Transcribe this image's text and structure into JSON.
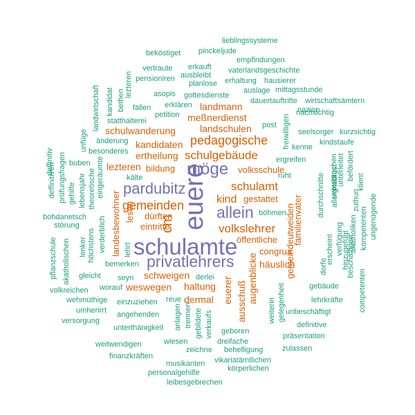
{
  "colors": {
    "purple": "#7570b3",
    "orange": "#d95f02",
    "teal": "#1b9e77"
  },
  "words": [
    {
      "text": "schulamte",
      "color": "purple"
    },
    {
      "text": "euere",
      "color": "purple"
    },
    {
      "text": "privatlehrers",
      "color": "purple"
    },
    {
      "text": "möge",
      "color": "purple"
    },
    {
      "text": "pardubitz",
      "color": "purple"
    },
    {
      "text": "allein",
      "color": "purple"
    },
    {
      "text": "pedagogische",
      "color": "orange"
    },
    {
      "text": "schulgebäude",
      "color": "orange"
    },
    {
      "text": "gemeinden",
      "color": "orange"
    },
    {
      "text": "volkslehrer",
      "color": "orange"
    },
    {
      "text": "schulamt",
      "color": "orange"
    },
    {
      "text": "kind",
      "color": "orange"
    },
    {
      "text": "cm",
      "color": "orange"
    },
    {
      "text": "landmann",
      "color": "orange"
    },
    {
      "text": "meßnerdienst",
      "color": "orange"
    },
    {
      "text": "landschulen",
      "color": "orange"
    },
    {
      "text": "schulwanderung",
      "color": "orange"
    },
    {
      "text": "kandidaten",
      "color": "orange"
    },
    {
      "text": "ertheilung",
      "color": "orange"
    },
    {
      "text": "lezteren",
      "color": "orange"
    },
    {
      "text": "bildung",
      "color": "orange"
    },
    {
      "text": "volksschule",
      "color": "orange"
    },
    {
      "text": "dürften",
      "color": "orange"
    },
    {
      "text": "eintritte",
      "color": "orange"
    },
    {
      "text": "gestattet",
      "color": "orange"
    },
    {
      "text": "öffentliche",
      "color": "orange"
    },
    {
      "text": "congrua",
      "color": "orange"
    },
    {
      "text": "häuslich",
      "color": "orange"
    },
    {
      "text": "schweigen",
      "color": "orange"
    },
    {
      "text": "weswegen",
      "color": "orange"
    },
    {
      "text": "haltung",
      "color": "orange"
    },
    {
      "text": "dermal",
      "color": "orange"
    },
    {
      "text": "euerer",
      "color": "orange"
    },
    {
      "text": "ausschuß",
      "color": "orange"
    },
    {
      "text": "augenblicke",
      "color": "orange"
    },
    {
      "text": "familienvater",
      "color": "orange"
    },
    {
      "text": "gemeindeutweiden",
      "color": "orange"
    },
    {
      "text": "landesbewohner",
      "color": "orange"
    },
    {
      "text": "lesen",
      "color": "orange"
    },
    {
      "text": "lieblingssysteme",
      "color": "teal"
    },
    {
      "text": "beköstiget",
      "color": "teal"
    },
    {
      "text": "pinckeljude",
      "color": "teal"
    },
    {
      "text": "empfindungen",
      "color": "teal"
    },
    {
      "text": "vertraute",
      "color": "teal"
    },
    {
      "text": "erkauft",
      "color": "teal"
    },
    {
      "text": "vaterlandsgeschichte",
      "color": "teal"
    },
    {
      "text": "pensioniren",
      "color": "teal"
    },
    {
      "text": "ausbleibt",
      "color": "teal"
    },
    {
      "text": "planlose",
      "color": "teal"
    },
    {
      "text": "erhaltung",
      "color": "teal"
    },
    {
      "text": "hausierer",
      "color": "teal"
    },
    {
      "text": "asopis",
      "color": "teal"
    },
    {
      "text": "gottesdienste",
      "color": "teal"
    },
    {
      "text": "auslage",
      "color": "teal"
    },
    {
      "text": "mittagsstunde",
      "color": "teal"
    },
    {
      "text": "fällen",
      "color": "teal"
    },
    {
      "text": "erklären",
      "color": "teal"
    },
    {
      "text": "dauertauftritte",
      "color": "teal"
    },
    {
      "text": "wirtschaftsämtern",
      "color": "teal"
    },
    {
      "text": "nazion",
      "color": "teal"
    },
    {
      "text": "nachsichtig",
      "color": "teal"
    },
    {
      "text": "petition",
      "color": "teal"
    },
    {
      "text": "statthalterei",
      "color": "teal"
    },
    {
      "text": "post",
      "color": "teal"
    },
    {
      "text": "seelsorger",
      "color": "teal"
    },
    {
      "text": "kurzsichtig",
      "color": "teal"
    },
    {
      "text": "änderung",
      "color": "teal"
    },
    {
      "text": "kindstaufe",
      "color": "teal"
    },
    {
      "text": "besonderes",
      "color": "teal"
    },
    {
      "text": "kenne",
      "color": "teal"
    },
    {
      "text": "ergreifen",
      "color": "teal"
    },
    {
      "text": "buben",
      "color": "teal"
    },
    {
      "text": "kälte",
      "color": "teal"
    },
    {
      "text": "ruht",
      "color": "teal"
    },
    {
      "text": "böhmen",
      "color": "teal"
    },
    {
      "text": "bohdanetsch",
      "color": "teal"
    },
    {
      "text": "störung",
      "color": "teal"
    },
    {
      "text": "lehrt",
      "color": "teal"
    },
    {
      "text": "bemerken",
      "color": "teal"
    },
    {
      "text": "seyn",
      "color": "teal"
    },
    {
      "text": "derlei",
      "color": "teal"
    },
    {
      "text": "gleicht",
      "color": "teal"
    },
    {
      "text": "worauf",
      "color": "teal"
    },
    {
      "text": "volkreichen",
      "color": "teal"
    },
    {
      "text": "gebäude",
      "color": "teal"
    },
    {
      "text": "wehmüthige",
      "color": "teal"
    },
    {
      "text": "lehrkräfte",
      "color": "teal"
    },
    {
      "text": "einzuziehen",
      "color": "teal"
    },
    {
      "text": "reue",
      "color": "teal"
    },
    {
      "text": "umherirrt",
      "color": "teal"
    },
    {
      "text": "unbeschäftigt",
      "color": "teal"
    },
    {
      "text": "angehenden",
      "color": "teal"
    },
    {
      "text": "versorgung",
      "color": "teal"
    },
    {
      "text": "definitive",
      "color": "teal"
    },
    {
      "text": "unterthänigkeit",
      "color": "teal"
    },
    {
      "text": "geboren",
      "color": "teal"
    },
    {
      "text": "präsentation",
      "color": "teal"
    },
    {
      "text": "weitwendigen",
      "color": "teal"
    },
    {
      "text": "wiesen",
      "color": "teal"
    },
    {
      "text": "dreifache",
      "color": "teal"
    },
    {
      "text": "zulassen",
      "color": "teal"
    },
    {
      "text": "finanzkräften",
      "color": "teal"
    },
    {
      "text": "zeichne",
      "color": "teal"
    },
    {
      "text": "behelligung",
      "color": "teal"
    },
    {
      "text": "vikariatämtlichen",
      "color": "teal"
    },
    {
      "text": "musikanten",
      "color": "teal"
    },
    {
      "text": "personalgehilfe",
      "color": "teal"
    },
    {
      "text": "körperlichen",
      "color": "teal"
    },
    {
      "text": "leibesgebrechen",
      "color": "teal"
    },
    {
      "text": "landwirtschaft",
      "color": "teal"
    },
    {
      "text": "kandidat",
      "color": "teal"
    },
    {
      "text": "bethen",
      "color": "teal"
    },
    {
      "text": "lezteren",
      "color": "teal"
    },
    {
      "text": "unfüge",
      "color": "teal"
    },
    {
      "text": "deffinitiv",
      "color": "teal"
    },
    {
      "text": "deffinitiven",
      "color": "teal"
    },
    {
      "text": "prüfungsfragen",
      "color": "teal"
    },
    {
      "text": "gehilfe",
      "color": "teal"
    },
    {
      "text": "lebensjahr",
      "color": "teal"
    },
    {
      "text": "theoretische",
      "color": "teal"
    },
    {
      "text": "eingeräumte",
      "color": "teal"
    },
    {
      "text": "lenker",
      "color": "teal"
    },
    {
      "text": "höchstens",
      "color": "teal"
    },
    {
      "text": "verderblich",
      "color": "teal"
    },
    {
      "text": "pflanzschule",
      "color": "teal"
    },
    {
      "text": "akatholischen",
      "color": "teal"
    },
    {
      "text": "freiwilligen",
      "color": "teal"
    },
    {
      "text": "unterbrochen",
      "color": "teal"
    },
    {
      "text": "durchschnitte",
      "color": "teal"
    },
    {
      "text": "erscheint",
      "color": "teal"
    },
    {
      "text": "dorfe",
      "color": "teal"
    },
    {
      "text": "beschäftigen",
      "color": "teal"
    },
    {
      "text": "verfügung",
      "color": "teal"
    },
    {
      "text": "hinzugefügt",
      "color": "teal"
    },
    {
      "text": "unterleitet",
      "color": "teal"
    },
    {
      "text": "befördert",
      "color": "teal"
    },
    {
      "text": "allergnädigst",
      "color": "teal"
    },
    {
      "text": "klient",
      "color": "teal"
    },
    {
      "text": "zuthun",
      "color": "teal"
    },
    {
      "text": "akatholiken",
      "color": "teal"
    },
    {
      "text": "kompetenten",
      "color": "teal"
    },
    {
      "text": "ungenügende",
      "color": "teal"
    },
    {
      "text": "competenten",
      "color": "teal"
    },
    {
      "text": "gelegenheit",
      "color": "teal"
    },
    {
      "text": "weiterin",
      "color": "teal"
    },
    {
      "text": "anlagen",
      "color": "teal"
    },
    {
      "text": "trennen",
      "color": "teal"
    },
    {
      "text": "gebildete",
      "color": "teal"
    },
    {
      "text": "verkaufs",
      "color": "teal"
    }
  ]
}
